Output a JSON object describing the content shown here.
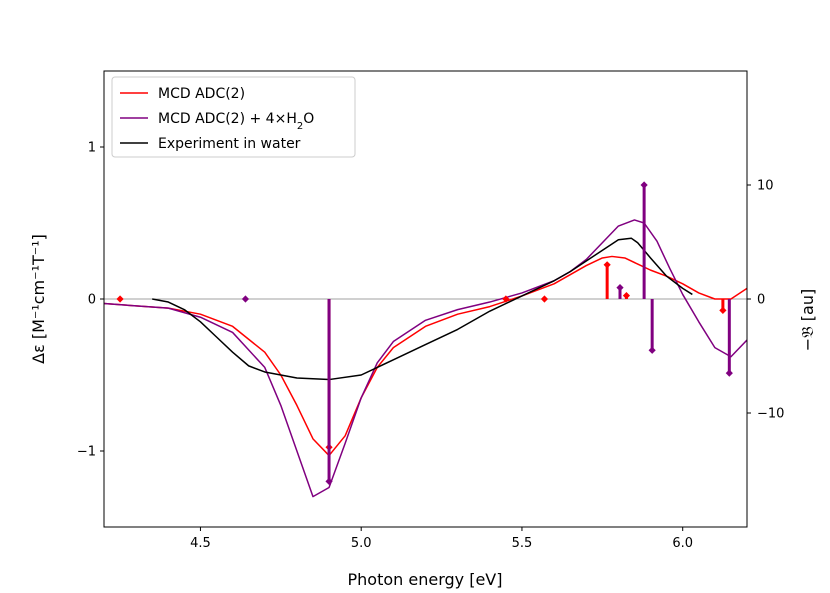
{
  "chart_data": {
    "type": "line",
    "xlabel": "Photon energy [eV]",
    "ylabel": "Δε [M⁻¹cm⁻¹T⁻¹]",
    "y2label": "−𝔅 [au]",
    "xlim": [
      4.2,
      6.2
    ],
    "ylim": [
      -1.5,
      1.5
    ],
    "y2lim": [
      -20,
      20
    ],
    "x_ticks": [
      4.5,
      5.0,
      5.5,
      6.0
    ],
    "x_tick_labels": [
      "4.5",
      "5.0",
      "5.5",
      "6.0"
    ],
    "y_ticks": [
      -1,
      0,
      1
    ],
    "y_tick_labels": [
      "−1",
      "0",
      "1"
    ],
    "y2_ticks": [
      -10,
      0,
      10
    ],
    "y2_tick_labels": [
      "−10",
      "0",
      "10"
    ],
    "legend_position": "top-left",
    "zero_line": true,
    "series": [
      {
        "name": "MCD ADC(2)",
        "color": "#ff0000",
        "x": [
          4.2,
          4.4,
          4.5,
          4.6,
          4.7,
          4.75,
          4.8,
          4.85,
          4.9,
          4.95,
          5.0,
          5.05,
          5.1,
          5.2,
          5.3,
          5.4,
          5.5,
          5.6,
          5.65,
          5.7,
          5.75,
          5.78,
          5.82,
          5.86,
          5.9,
          5.95,
          6.0,
          6.05,
          6.1,
          6.15,
          6.2
        ],
        "y": [
          -0.03,
          -0.06,
          -0.1,
          -0.18,
          -0.35,
          -0.5,
          -0.7,
          -0.92,
          -1.03,
          -0.9,
          -0.65,
          -0.45,
          -0.32,
          -0.18,
          -0.1,
          -0.05,
          0.02,
          0.1,
          0.16,
          0.22,
          0.27,
          0.28,
          0.27,
          0.23,
          0.19,
          0.15,
          0.1,
          0.04,
          0.0,
          0.0,
          0.07
        ]
      },
      {
        "name": "MCD ADC(2) + 4×H₂O",
        "name_parts": [
          "MCD ADC(2) + 4×H",
          "2",
          "O"
        ],
        "color": "#800080",
        "x": [
          4.2,
          4.4,
          4.5,
          4.6,
          4.7,
          4.75,
          4.8,
          4.85,
          4.9,
          4.95,
          5.0,
          5.05,
          5.1,
          5.2,
          5.3,
          5.4,
          5.5,
          5.6,
          5.65,
          5.7,
          5.75,
          5.8,
          5.85,
          5.88,
          5.92,
          5.96,
          6.0,
          6.05,
          6.1,
          6.15,
          6.2
        ],
        "y": [
          -0.03,
          -0.06,
          -0.12,
          -0.22,
          -0.45,
          -0.7,
          -1.0,
          -1.3,
          -1.24,
          -0.95,
          -0.65,
          -0.42,
          -0.28,
          -0.14,
          -0.07,
          -0.02,
          0.04,
          0.12,
          0.18,
          0.26,
          0.37,
          0.48,
          0.52,
          0.5,
          0.38,
          0.2,
          0.03,
          -0.15,
          -0.32,
          -0.38,
          -0.27
        ]
      },
      {
        "name": "Experiment in water",
        "color": "#000000",
        "x": [
          4.35,
          4.4,
          4.45,
          4.5,
          4.55,
          4.6,
          4.65,
          4.7,
          4.8,
          4.9,
          5.0,
          5.05,
          5.1,
          5.2,
          5.3,
          5.4,
          5.5,
          5.6,
          5.65,
          5.7,
          5.75,
          5.8,
          5.84,
          5.86,
          5.9,
          5.95,
          6.0,
          6.03
        ],
        "y": [
          0.0,
          -0.02,
          -0.07,
          -0.15,
          -0.25,
          -0.35,
          -0.44,
          -0.48,
          -0.52,
          -0.53,
          -0.5,
          -0.45,
          -0.4,
          -0.3,
          -0.2,
          -0.08,
          0.02,
          0.12,
          0.18,
          0.25,
          0.32,
          0.39,
          0.4,
          0.37,
          0.27,
          0.15,
          0.07,
          0.03
        ]
      }
    ],
    "stick_series": [
      {
        "color": "#ff0000",
        "axis": "right",
        "x": [
          4.25,
          4.9,
          5.45,
          5.57,
          5.765,
          5.825,
          6.125
        ],
        "y": [
          0.0,
          -13.0,
          0.0,
          0.0,
          3.0,
          0.3,
          -1.0
        ]
      },
      {
        "color": "#800080",
        "axis": "right",
        "x": [
          4.64,
          4.9,
          5.805,
          5.88,
          5.905,
          6.145
        ],
        "y": [
          0.0,
          -16.0,
          1.0,
          10.0,
          -4.5,
          -6.5
        ]
      }
    ]
  }
}
